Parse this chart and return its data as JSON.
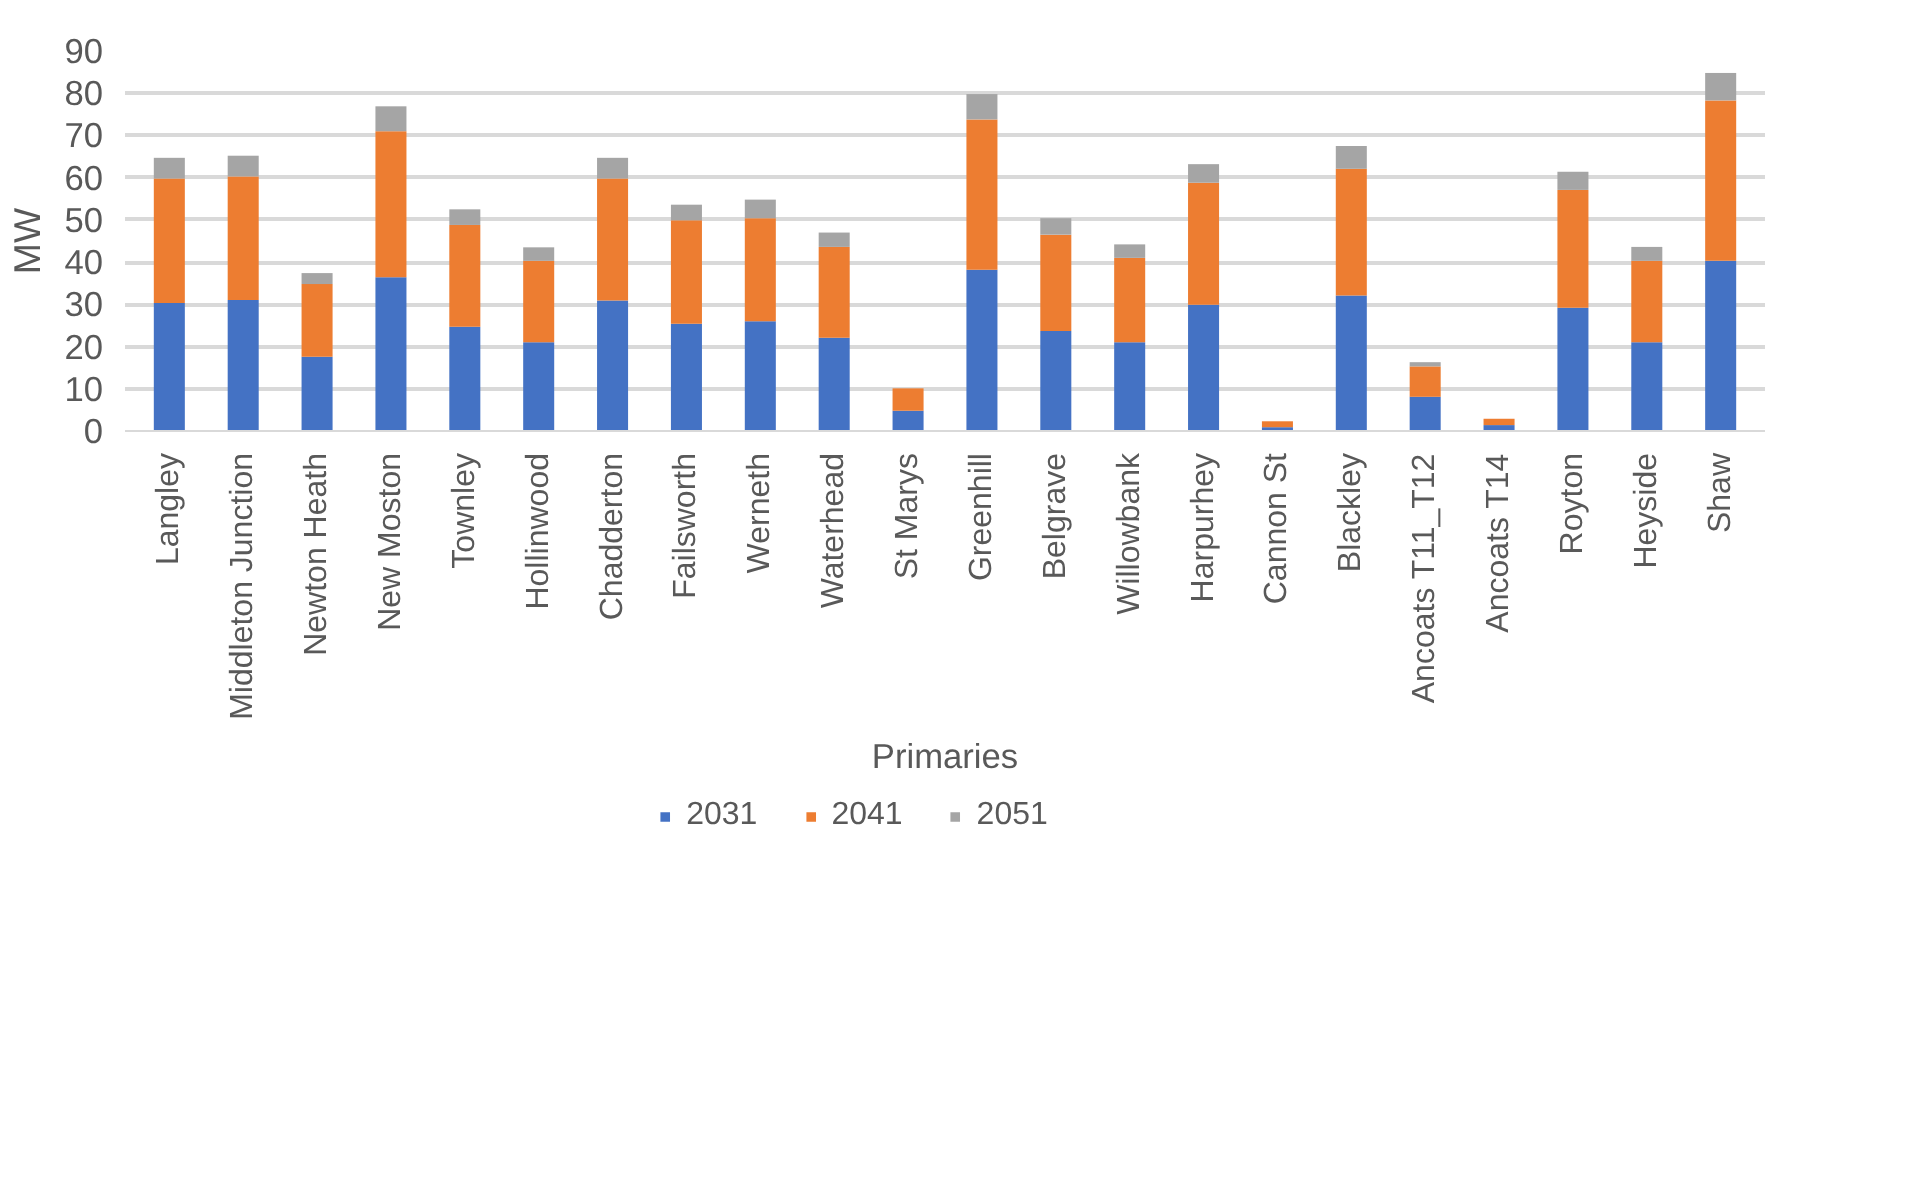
{
  "chart_data": {
    "type": "bar",
    "stacked": true,
    "xlabel": "Primaries",
    "ylabel": "MW",
    "categories": [
      "Langley",
      "Middleton Junction",
      "Newton Heath",
      "New Moston",
      "Townley",
      "Hollinwood",
      "Chadderton",
      "Failsworth",
      "Werneth",
      "Waterhead",
      "St Marys",
      "Greenhill",
      "Belgrave",
      "Willowbank",
      "Harpurhey",
      "Cannon St",
      "Blackley",
      "Ancoats T11_T12",
      "Ancoats T14",
      "Royton",
      "Heyside",
      "Shaw"
    ],
    "series": [
      {
        "name": "2031",
        "color": "#4472c4",
        "values": [
          30.3,
          31,
          17.6,
          36.4,
          24.7,
          21,
          30.9,
          25.4,
          26,
          22.1,
          4.8,
          38.2,
          23.7,
          21,
          29.9,
          0.9,
          32.1,
          8.1,
          1.4,
          29.2,
          21,
          40.3
        ]
      },
      {
        "name": "2041",
        "color": "#ed7d31",
        "values": [
          29.5,
          29.3,
          17.2,
          34.6,
          24.1,
          19.3,
          28.9,
          24.5,
          24.4,
          21.5,
          5.3,
          35.6,
          22.8,
          20,
          28.9,
          1.4,
          30,
          7.2,
          1.5,
          27.9,
          19.3,
          38
        ]
      },
      {
        "name": "2051",
        "color": "#a5a5a5",
        "values": [
          4.9,
          4.9,
          2.6,
          5.9,
          3.7,
          3.2,
          4.9,
          3.7,
          4.4,
          3.4,
          null,
          6,
          3.9,
          3.2,
          4.4,
          null,
          5.4,
          1,
          null,
          4.3,
          3.3,
          6.5
        ]
      }
    ],
    "ylim": [
      0,
      90
    ],
    "yticks": [
      0,
      10,
      20,
      30,
      40,
      50,
      60,
      70,
      80,
      90
    ],
    "grid": "y",
    "legend": "bottom"
  }
}
